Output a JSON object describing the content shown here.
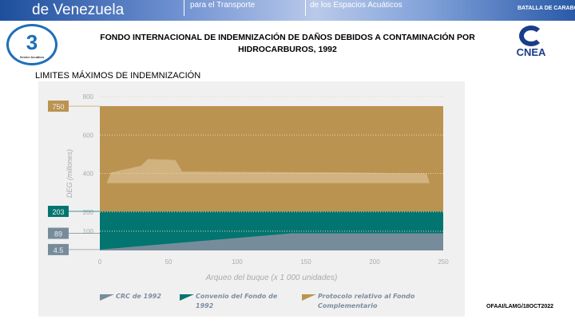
{
  "banner": {
    "left": "de Venezuela",
    "mid": "para el Transporte",
    "right": "de los Espacios Acuáticos",
    "badge": "BATALLA DE CARABOBO"
  },
  "logos": {
    "left_number": "3",
    "left_caption": "Sector Acuático",
    "right": "CNEA"
  },
  "title": "FONDO INTERNACIONAL DE INDEMNIZACIÓN DE DAÑOS DEBIDOS A CONTAMINACIÓN POR HIDROCARBUROS, 1992",
  "subtitle": "LIMITES MÁXIMOS DE INDEMNIZACIÓN",
  "footer": "OFAAI/LAMG/18OCT2022",
  "colors": {
    "crc": "#778c9a",
    "fund": "#027570",
    "supp": "#bb9350"
  },
  "chart_data": {
    "type": "area",
    "xlabel": "Arqueo del buque (x 1 000 unidades)",
    "ylabel": "DEG (millones)",
    "xlim": [
      0,
      250
    ],
    "ylim": [
      0,
      800
    ],
    "xticks": [
      "0",
      "50",
      "100",
      "150",
      "200",
      "250"
    ],
    "yticks": [
      "100",
      "200",
      "400",
      "600",
      "800"
    ],
    "x": [
      0,
      140,
      250
    ],
    "series": [
      {
        "name": "CRC de 1992",
        "values": [
          4.5,
          89,
          89
        ]
      },
      {
        "name": "Convenio del Fondo de 1992",
        "values": [
          203,
          203,
          203
        ]
      },
      {
        "name": "Protocolo relativo al Fondo Complementario",
        "values": [
          750,
          750,
          750
        ]
      }
    ],
    "value_labels": [
      "750",
      "203",
      "89",
      "4.5"
    ],
    "legend_position": "bottom"
  }
}
